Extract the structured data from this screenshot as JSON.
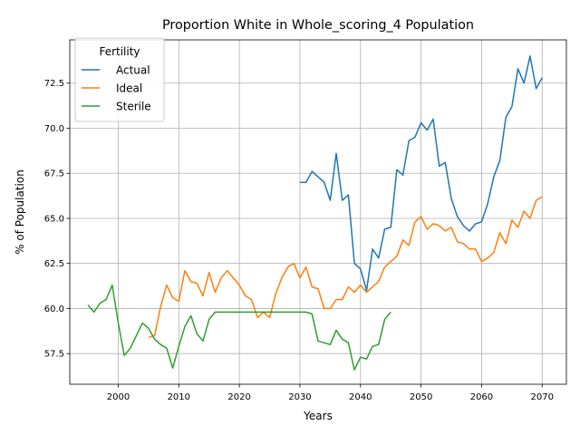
{
  "chart_data": {
    "type": "line",
    "title": "Proportion White in Whole_scoring_4 Population",
    "xlabel": "Years",
    "ylabel": "% of Population",
    "xlim": [
      1992,
      2074
    ],
    "ylim": [
      55.8,
      74.9
    ],
    "xticks": [
      2000,
      2010,
      2020,
      2030,
      2040,
      2050,
      2060,
      2070
    ],
    "yticks": [
      57.5,
      60.0,
      62.5,
      65.0,
      67.5,
      70.0,
      72.5
    ],
    "xtick_labels": [
      "2000",
      "2010",
      "2020",
      "2030",
      "2040",
      "2050",
      "2060",
      "2070"
    ],
    "ytick_labels": [
      "57.5",
      "60.0",
      "62.5",
      "65.0",
      "67.5",
      "70.0",
      "72.5"
    ],
    "grid": true,
    "legend": {
      "title": "Fertility",
      "placement": "top-left"
    },
    "series": [
      {
        "name": "Actual",
        "color": "#1f77b4",
        "x": [
          2030,
          2031,
          2032,
          2033,
          2034,
          2035,
          2036,
          2037,
          2038,
          2039,
          2040,
          2041,
          2042,
          2043,
          2044,
          2045,
          2046,
          2047,
          2048,
          2049,
          2050,
          2051,
          2052,
          2053,
          2054,
          2055,
          2056,
          2057,
          2058,
          2059,
          2060,
          2061,
          2062,
          2063,
          2064,
          2065,
          2066,
          2067,
          2068,
          2069,
          2070
        ],
        "y": [
          67.0,
          67.0,
          67.6,
          67.3,
          67.0,
          66.0,
          68.6,
          66.0,
          66.3,
          62.5,
          62.2,
          61.0,
          63.3,
          62.8,
          64.4,
          64.5,
          67.7,
          67.4,
          69.3,
          69.5,
          70.3,
          69.9,
          70.5,
          67.9,
          68.1,
          66.1,
          65.1,
          64.6,
          64.3,
          64.7,
          64.8,
          65.8,
          67.3,
          68.2,
          70.6,
          71.2,
          73.3,
          72.5,
          74.0,
          72.2,
          72.8
        ]
      },
      {
        "name": "Ideal",
        "color": "#ff7f0e",
        "x": [
          2005,
          2006,
          2007,
          2008,
          2009,
          2010,
          2011,
          2012,
          2013,
          2014,
          2015,
          2016,
          2017,
          2018,
          2019,
          2020,
          2021,
          2022,
          2023,
          2024,
          2025,
          2026,
          2027,
          2028,
          2029,
          2030,
          2031,
          2032,
          2033,
          2034,
          2035,
          2036,
          2037,
          2038,
          2039,
          2040,
          2041,
          2042,
          2043,
          2044,
          2045,
          2046,
          2047,
          2048,
          2049,
          2050,
          2051,
          2052,
          2053,
          2054,
          2055,
          2056,
          2057,
          2058,
          2059,
          2060,
          2061,
          2062,
          2063,
          2064,
          2065,
          2066,
          2067,
          2068,
          2069,
          2070
        ],
        "y": [
          58.4,
          58.5,
          60.1,
          61.3,
          60.6,
          60.4,
          62.1,
          61.5,
          61.4,
          60.7,
          62.0,
          60.9,
          61.7,
          62.1,
          61.7,
          61.3,
          60.7,
          60.5,
          59.5,
          59.8,
          59.5,
          60.8,
          61.7,
          62.3,
          62.5,
          61.7,
          62.3,
          61.2,
          61.1,
          60.0,
          60.0,
          60.5,
          60.5,
          61.2,
          60.9,
          61.3,
          60.9,
          61.2,
          61.5,
          62.3,
          62.6,
          62.9,
          63.8,
          63.5,
          64.8,
          65.1,
          64.4,
          64.7,
          64.6,
          64.3,
          64.5,
          63.7,
          63.6,
          63.3,
          63.3,
          62.6,
          62.8,
          63.1,
          64.2,
          63.6,
          64.9,
          64.5,
          65.4,
          65.0,
          66.0,
          66.2
        ]
      },
      {
        "name": "Sterile",
        "color": "#2ca02c",
        "x": [
          1995,
          1996,
          1997,
          1998,
          1999,
          2000,
          2001,
          2002,
          2003,
          2004,
          2005,
          2006,
          2007,
          2008,
          2009,
          2010,
          2011,
          2012,
          2013,
          2014,
          2015,
          2016,
          2017,
          2018,
          2019,
          2020,
          2021,
          2022,
          2023,
          2024,
          2025,
          2026,
          2027,
          2028,
          2029,
          2030,
          2031,
          2032,
          2033,
          2034,
          2035,
          2036,
          2037,
          2038,
          2039,
          2040,
          2041,
          2042,
          2043,
          2044,
          2045
        ],
        "y": [
          60.2,
          59.8,
          60.3,
          60.5,
          61.3,
          59.2,
          57.4,
          57.8,
          58.5,
          59.2,
          58.9,
          58.3,
          58.0,
          57.8,
          56.7,
          57.9,
          59.0,
          59.6,
          58.6,
          58.2,
          59.4,
          59.8,
          59.8,
          59.8,
          59.8,
          59.8,
          59.8,
          59.8,
          59.8,
          59.8,
          59.8,
          59.8,
          59.8,
          59.8,
          59.8,
          59.8,
          59.8,
          59.7,
          58.2,
          58.1,
          58.0,
          58.8,
          58.3,
          58.1,
          56.6,
          57.3,
          57.2,
          57.9,
          58.0,
          59.4,
          59.8
        ]
      }
    ]
  }
}
